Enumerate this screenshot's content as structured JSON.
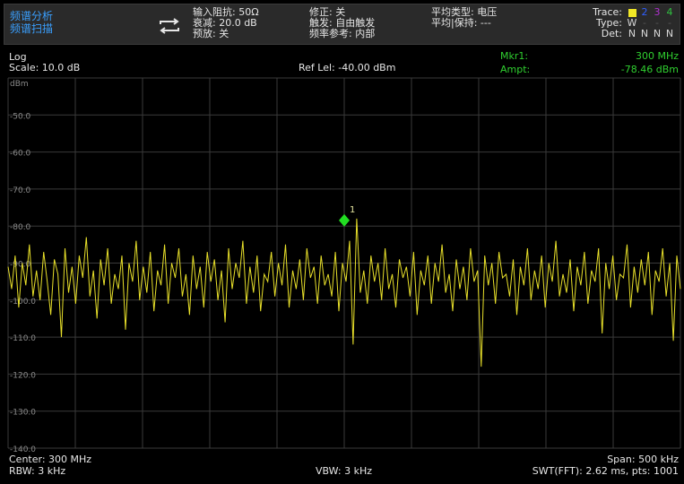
{
  "header": {
    "mode_line1": "频谱分析",
    "mode_line2": "频谱扫描",
    "col1": [
      "输入阻抗: 50Ω",
      "衰减: 20.0 dB",
      "预放: 关"
    ],
    "col2": [
      "修正: 关",
      "触发: 自由触发",
      "频率参考: 内部"
    ],
    "col3": [
      "平均类型: 电压",
      "平均|保持: ---"
    ],
    "trace": {
      "trace_label": "Trace:",
      "type_label": "Type:",
      "det_label": "Det:",
      "numbers": [
        "1",
        "2",
        "3",
        "4"
      ],
      "types": [
        "W",
        "",
        "",
        ""
      ],
      "dets": [
        "N",
        "N",
        "N",
        "N"
      ]
    }
  },
  "info": {
    "scale_type": "Log",
    "scale": "Scale: 10.0 dB",
    "ref_level": "Ref Lel: -40.00 dBm",
    "marker_label": "Mkr1:",
    "marker_freq": "300 MHz",
    "ampt_label": "Ampt:",
    "ampt_value": "-78.46 dBm"
  },
  "plot": {
    "unit": "dBm",
    "y_labels": [
      "-50.0",
      "-60.0",
      "-70.0",
      "-80.0",
      "-90.0",
      "-100.0",
      "-110.0",
      "-120.0",
      "-130.0",
      "-140.0"
    ],
    "marker_number": "1"
  },
  "footer": {
    "center": "Center: 300 MHz",
    "rbw": "RBW: 3 kHz",
    "vbw": "VBW: 3 kHz",
    "span": "Span: 500 kHz",
    "swt": "SWT(FFT): 2.62 ms, pts: 1001"
  },
  "colors": {
    "trace": "#e8e02a",
    "marker": "#22dd22",
    "grid": "#3a3a3a",
    "accent_blue": "#3aa0ff"
  },
  "chart_data": {
    "type": "line",
    "title": "",
    "xlabel": "",
    "ylabel": "dBm",
    "x_center_mhz": 300,
    "x_span_khz": 500,
    "ylim": [
      -140,
      -40
    ],
    "grid": true,
    "marker": {
      "x_mhz": 300,
      "y_dbm": -78.46,
      "label": "1"
    },
    "series": [
      {
        "values": [
          -91,
          -97,
          -88,
          -102,
          -90,
          -96,
          -85,
          -99,
          -92,
          -100,
          -87,
          -95,
          -104,
          -89,
          -93,
          -110,
          -86,
          -98,
          -91,
          -101,
          -88,
          -94,
          -83,
          -99,
          -92,
          -105,
          -89,
          -96,
          -86,
          -101,
          -93,
          -97,
          -88,
          -108,
          -90,
          -95,
          -84,
          -100,
          -91,
          -98,
          -87,
          -103,
          -92,
          -96,
          -85,
          -101,
          -90,
          -94,
          -86,
          -99,
          -93,
          -104,
          -88,
          -97,
          -91,
          -102,
          -87,
          -95,
          -89,
          -100,
          -92,
          -106,
          -86,
          -97,
          -90,
          -94,
          -84,
          -101,
          -91,
          -98,
          -88,
          -103,
          -93,
          -95,
          -87,
          -99,
          -90,
          -96,
          -85,
          -102,
          -92,
          -97,
          -89,
          -100,
          -86,
          -94,
          -91,
          -101,
          -88,
          -96,
          -93,
          -99,
          -87,
          -103,
          -90,
          -95,
          -84,
          -112,
          -78,
          -98,
          -92,
          -101,
          -88,
          -95,
          -90,
          -100,
          -86,
          -97,
          -93,
          -102,
          -89,
          -94,
          -91,
          -99,
          -87,
          -104,
          -92,
          -96,
          -88,
          -101,
          -90,
          -95,
          -85,
          -98,
          -93,
          -103,
          -89,
          -97,
          -91,
          -100,
          -86,
          -95,
          -92,
          -118,
          -88,
          -96,
          -90,
          -101,
          -87,
          -94,
          -93,
          -99,
          -89,
          -104,
          -91,
          -96,
          -86,
          -100,
          -92,
          -97,
          -88,
          -102,
          -90,
          -95,
          -84,
          -99,
          -93,
          -98,
          -89,
          -103,
          -91,
          -96,
          -87,
          -101,
          -92,
          -95,
          -86,
          -109,
          -90,
          -97,
          -88,
          -100,
          -93,
          -94,
          -85,
          -102,
          -91,
          -98,
          -89,
          -96,
          -87,
          -104,
          -92,
          -95,
          -86,
          -99,
          -90,
          -111,
          -88,
          -97
        ]
      }
    ]
  }
}
